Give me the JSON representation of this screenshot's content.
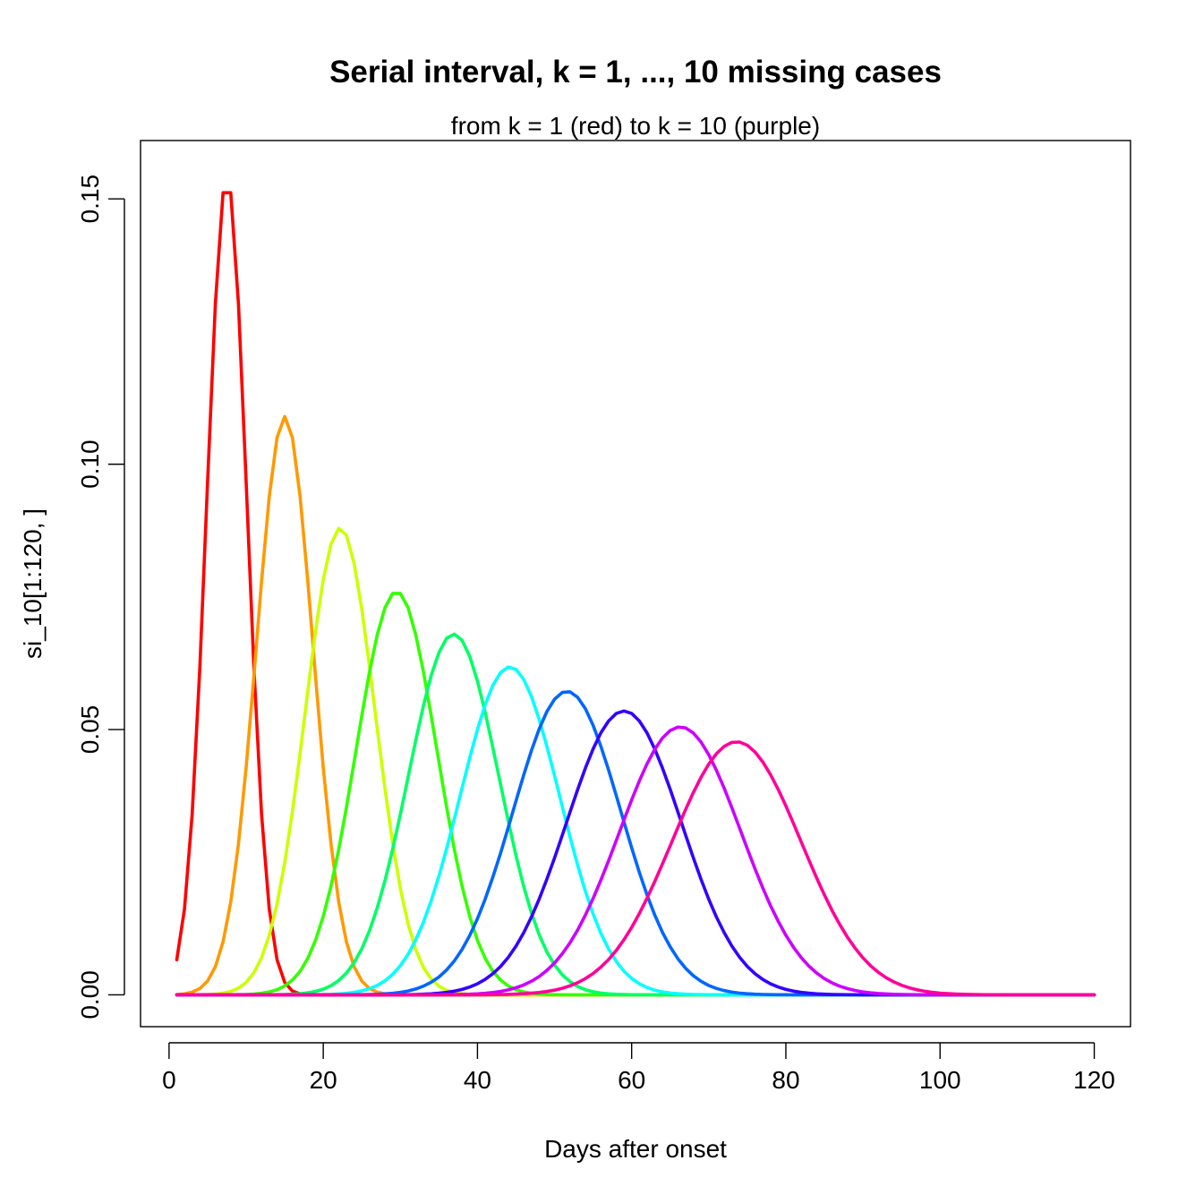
{
  "chart_data": {
    "type": "line",
    "title": "Serial interval, k = 1, ..., 10 missing cases",
    "subtitle": "from k = 1 (red) to k = 10 (purple)",
    "xlabel": "Days after onset",
    "ylabel": "si_10[1:120, ]",
    "xlim": [
      -3.7,
      124.7
    ],
    "ylim": [
      -0.006,
      0.161
    ],
    "xticks": [
      0,
      20,
      40,
      60,
      80,
      100,
      120
    ],
    "yticks": [
      0.0,
      0.05,
      0.1,
      0.15
    ],
    "yticklabels": [
      "0.00",
      "0.05",
      "0.10",
      "0.15"
    ],
    "grid": false,
    "x": [
      1,
      120
    ],
    "series": [
      {
        "peak_x": 7.5,
        "peak_y": 0.154,
        "color": "#FF0000"
      },
      {
        "peak_x": 15.0,
        "peak_y": 0.109,
        "color": "#FF9900"
      },
      {
        "peak_x": 22.2,
        "peak_y": 0.088,
        "color": "#CCFF00"
      },
      {
        "peak_x": 29.5,
        "peak_y": 0.076,
        "color": "#33FF00"
      },
      {
        "peak_x": 36.9,
        "peak_y": 0.068,
        "color": "#00FF66"
      },
      {
        "peak_x": 44.2,
        "peak_y": 0.0618,
        "color": "#00FFFF"
      },
      {
        "peak_x": 51.6,
        "peak_y": 0.0572,
        "color": "#0066FF"
      },
      {
        "peak_x": 59.0,
        "peak_y": 0.0535,
        "color": "#3300FF"
      },
      {
        "peak_x": 66.3,
        "peak_y": 0.0505,
        "color": "#CC00FF"
      },
      {
        "peak_x": 73.6,
        "peak_y": 0.0477,
        "color": "#FF0099"
      }
    ]
  }
}
